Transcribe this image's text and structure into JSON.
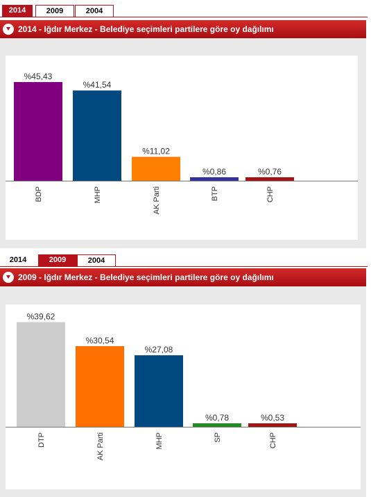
{
  "tabs": [
    {
      "label": "2014"
    },
    {
      "label": "2009"
    },
    {
      "label": "2004"
    }
  ],
  "chart_data": [
    {
      "type": "bar",
      "title": "2014 - Iğdır Merkez - Belediye seçimleri partilere göre oy dağılımı",
      "active_tab": "2014",
      "categories": [
        "BDP",
        "MHP",
        "AK Parti",
        "BTP",
        "CHP"
      ],
      "values": [
        45.43,
        41.54,
        11.02,
        0.86,
        0.76
      ],
      "labels": [
        "%45,43",
        "%41,54",
        "%11,02",
        "%0,86",
        "%0,76"
      ],
      "colors": [
        "#800080",
        "#004a80",
        "#ff8000",
        "#333399",
        "#a31515"
      ],
      "ylim": [
        0,
        48
      ],
      "grid": false,
      "legend": "none"
    },
    {
      "type": "bar",
      "title": "2009 - Iğdır Merkez - Belediye seçimleri partilere göre oy dağılımı",
      "active_tab": "2009",
      "categories": [
        "DTP",
        "AK Parti",
        "MHP",
        "SP",
        "CHP"
      ],
      "values": [
        39.62,
        30.54,
        27.08,
        0.78,
        0.53
      ],
      "labels": [
        "%39,62",
        "%30,54",
        "%27,08",
        "%0,78",
        "%0,53"
      ],
      "colors": [
        "#cccccc",
        "#ff7000",
        "#004a80",
        "#228b22",
        "#a31515"
      ],
      "ylim": [
        0,
        40
      ],
      "grid": false,
      "legend": "none"
    }
  ]
}
